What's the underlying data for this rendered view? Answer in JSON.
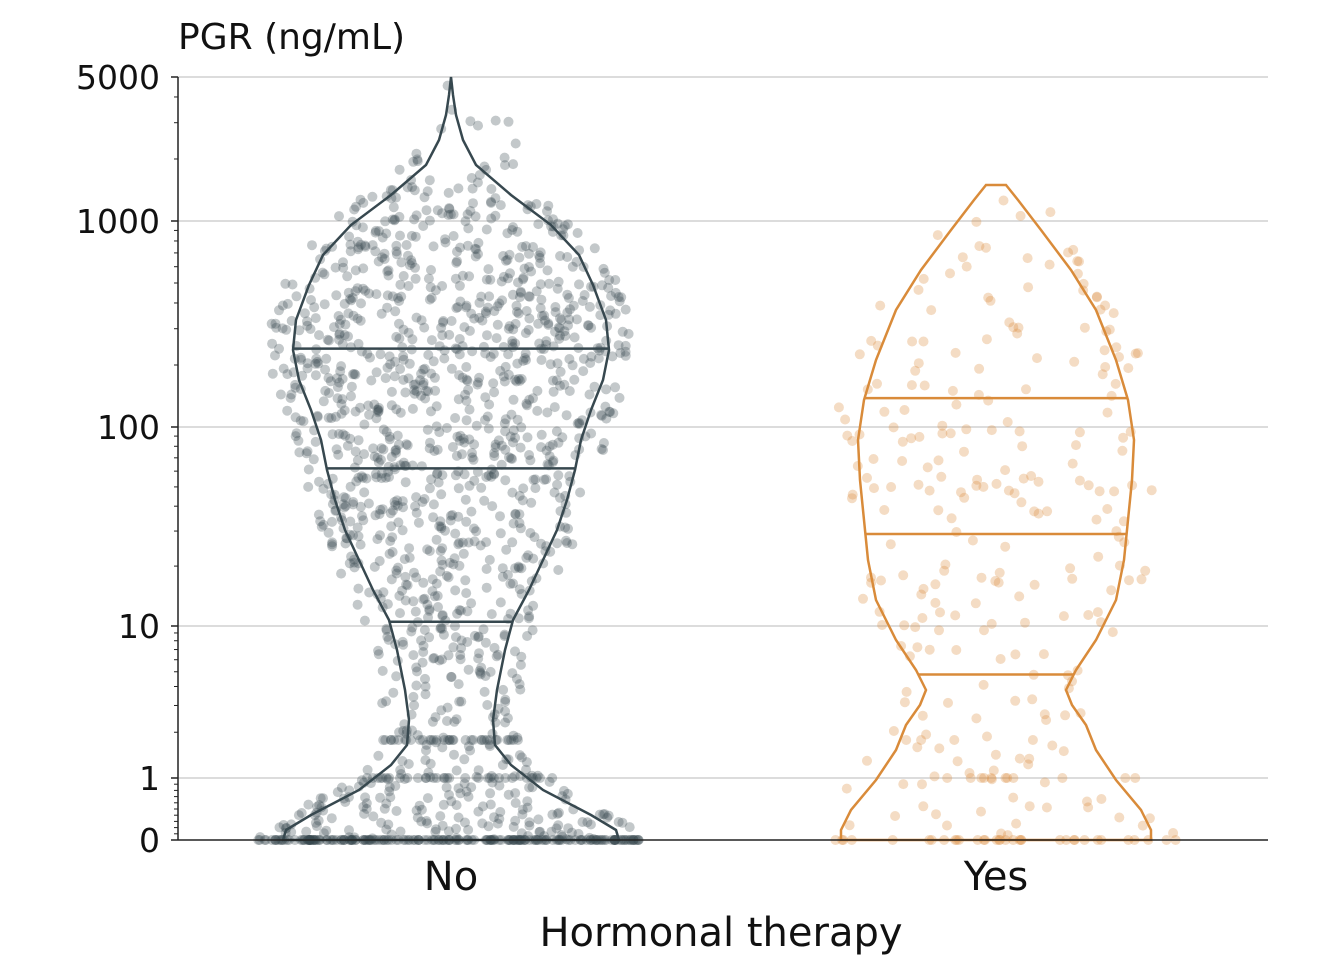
{
  "chart_data": {
    "type": "violin",
    "ylabel": "PGR (ng/mL)",
    "xlabel": "Hormonal therapy",
    "y_scale": "symlog",
    "ylim": [
      0,
      5000
    ],
    "y_ticks": [
      {
        "value": 0,
        "label": "0"
      },
      {
        "value": 1,
        "label": "1"
      },
      {
        "value": 10,
        "label": "10"
      },
      {
        "value": 100,
        "label": "100"
      },
      {
        "value": 1000,
        "label": "1000"
      },
      {
        "value": 5000,
        "label": "5000"
      }
    ],
    "grid": "horizontal",
    "categories": [
      "No",
      "Yes"
    ],
    "series": [
      {
        "category": "No",
        "color": "#37484f",
        "quartiles": {
          "q1": 10.5,
          "median": 62,
          "q3": 240
        },
        "max": 5000,
        "approx_count": 1600
      },
      {
        "category": "Yes",
        "color": "#d98b3a",
        "quartiles": {
          "q1": 4.8,
          "median": 29,
          "q3": 138
        },
        "max": 1600,
        "approx_count": 300
      }
    ]
  }
}
